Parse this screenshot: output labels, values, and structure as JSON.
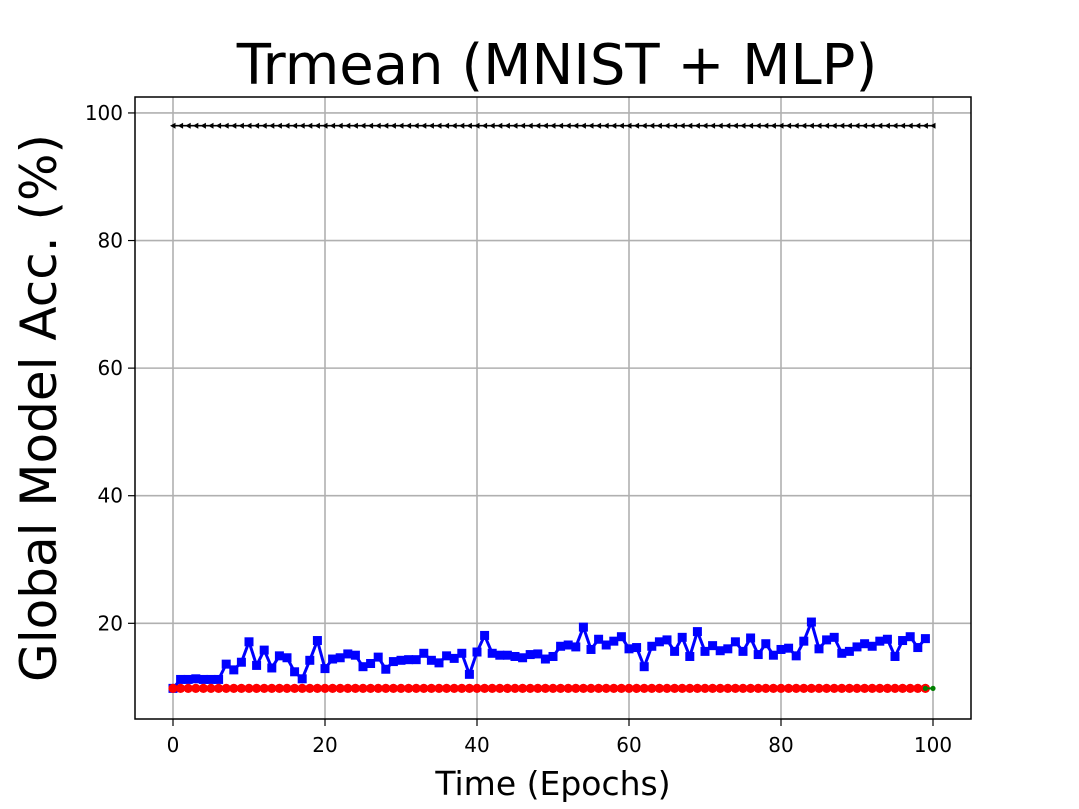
{
  "chart_data": {
    "type": "line",
    "title": "Trmean (MNIST + MLP)",
    "xlabel": "Time (Epochs)",
    "ylabel": "Global Model Acc. (%)",
    "xlim": [
      -5,
      105
    ],
    "ylim": [
      5,
      102.5
    ],
    "xticks": [
      0,
      20,
      40,
      60,
      80,
      100
    ],
    "yticks": [
      20,
      40,
      60,
      80,
      100
    ],
    "grid": true,
    "series": [
      {
        "color": "#000000",
        "marker": "triangle-left",
        "x_start": 0,
        "x_end": 100,
        "constant": 98
      },
      {
        "color": "#0000ff",
        "marker": "square",
        "x_start": 0,
        "values": [
          9.8,
          11.2,
          11.2,
          11.3,
          11.2,
          11.2,
          11.2,
          13.6,
          12.7,
          13.9,
          17.1,
          13.4,
          15.8,
          13.0,
          14.9,
          14.6,
          12.4,
          11.3,
          14.2,
          17.3,
          12.9,
          14.4,
          14.6,
          15.2,
          15.0,
          13.2,
          13.7,
          14.7,
          12.8,
          14.0,
          14.2,
          14.3,
          14.3,
          15.3,
          14.2,
          13.8,
          14.9,
          14.5,
          15.3,
          12.0,
          15.5,
          18.1,
          15.3,
          15.0,
          15.0,
          14.8,
          14.6,
          15.1,
          15.2,
          14.4,
          14.8,
          16.4,
          16.6,
          16.3,
          19.4,
          15.9,
          17.5,
          16.6,
          17.2,
          17.9,
          16.0,
          16.2,
          13.2,
          16.4,
          17.1,
          17.4,
          15.6,
          17.8,
          14.8,
          18.7,
          15.6,
          16.5,
          15.7,
          16.0,
          17.1,
          15.6,
          17.7,
          15.1,
          16.8,
          15.0,
          15.9,
          16.1,
          14.9,
          17.2,
          20.2,
          16.0,
          17.4,
          17.8,
          15.3,
          15.6,
          16.3,
          16.8,
          16.4,
          17.2,
          17.5,
          14.8,
          17.3,
          17.9,
          16.2,
          17.6
        ]
      },
      {
        "color": "#ff0000",
        "marker": "circle",
        "x_start": 0,
        "x_end": 99,
        "constant": 9.8
      },
      {
        "color": "#008000",
        "marker": "dot",
        "x_start": 99,
        "x_end": 100,
        "constant": 9.8
      }
    ]
  }
}
